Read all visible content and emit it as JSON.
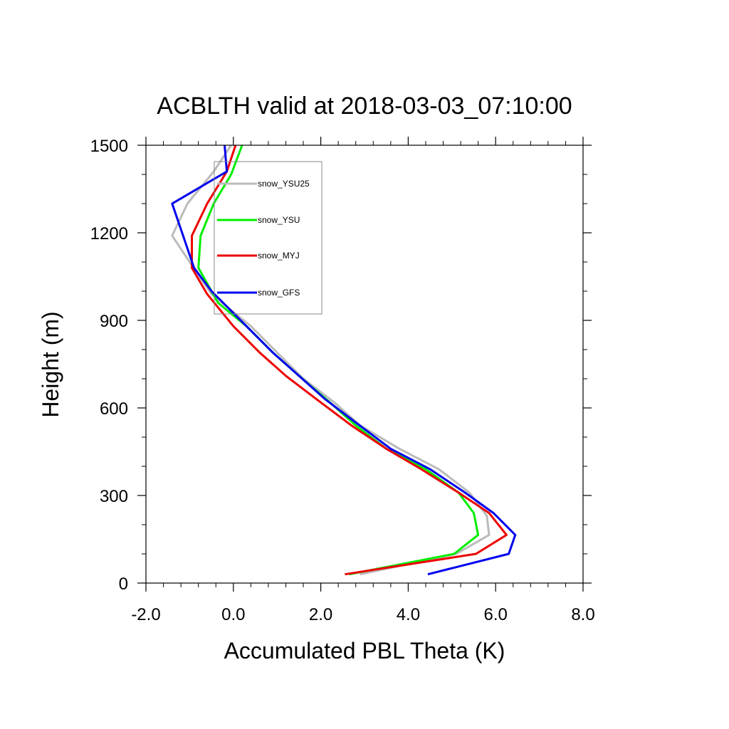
{
  "chart_data": {
    "type": "line",
    "title": "ACBLTH valid at 2018-03-03_07:10:00",
    "xlabel": "Accumulated PBL Theta (K)",
    "ylabel": "Height (m)",
    "xlim": [
      -2.0,
      8.0
    ],
    "ylim": [
      0,
      1500
    ],
    "xticks": [
      -2.0,
      0.0,
      2.0,
      4.0,
      6.0,
      8.0
    ],
    "xtick_labels": [
      "-2.0",
      "0.0",
      "2.0",
      "4.0",
      "6.0",
      "8.0"
    ],
    "yticks": [
      0,
      300,
      600,
      900,
      1200,
      1500
    ],
    "ytick_labels": [
      "0",
      "300",
      "600",
      "900",
      "1200",
      "1500"
    ],
    "legend_position": "top-left",
    "grid": false,
    "series": [
      {
        "name": "snow_YSU25",
        "color": "#bbbbbb",
        "points": [
          [
            2.9,
            30
          ],
          [
            5.1,
            100
          ],
          [
            5.85,
            165
          ],
          [
            5.8,
            230
          ],
          [
            5.4,
            310
          ],
          [
            4.7,
            390
          ],
          [
            3.8,
            460
          ],
          [
            2.9,
            540
          ],
          [
            2.3,
            620
          ],
          [
            1.6,
            700
          ],
          [
            1.0,
            790
          ],
          [
            0.4,
            880
          ],
          [
            -0.5,
            990
          ],
          [
            -1.0,
            1100
          ],
          [
            -1.4,
            1190
          ],
          [
            -1.05,
            1300
          ],
          [
            -0.45,
            1410
          ],
          [
            -0.05,
            1500
          ]
        ]
      },
      {
        "name": "snow_YSU",
        "color": "#00ee00",
        "points": [
          [
            2.65,
            30
          ],
          [
            5.05,
            100
          ],
          [
            5.6,
            165
          ],
          [
            5.5,
            240
          ],
          [
            5.15,
            310
          ],
          [
            4.4,
            390
          ],
          [
            3.5,
            460
          ],
          [
            2.8,
            540
          ],
          [
            2.2,
            620
          ],
          [
            1.5,
            710
          ],
          [
            0.9,
            790
          ],
          [
            0.3,
            880
          ],
          [
            -0.35,
            960
          ],
          [
            -0.8,
            1080
          ],
          [
            -0.75,
            1190
          ],
          [
            -0.45,
            1300
          ],
          [
            -0.05,
            1400
          ],
          [
            0.2,
            1500
          ]
        ]
      },
      {
        "name": "snow_MYJ",
        "color": "#ee0000",
        "points": [
          [
            2.55,
            30
          ],
          [
            5.55,
            100
          ],
          [
            6.25,
            165
          ],
          [
            5.85,
            240
          ],
          [
            5.15,
            310
          ],
          [
            4.3,
            390
          ],
          [
            3.5,
            460
          ],
          [
            2.7,
            540
          ],
          [
            1.9,
            630
          ],
          [
            1.2,
            710
          ],
          [
            0.6,
            790
          ],
          [
            0.0,
            880
          ],
          [
            -0.6,
            990
          ],
          [
            -0.95,
            1080
          ],
          [
            -0.95,
            1190
          ],
          [
            -0.6,
            1300
          ],
          [
            -0.15,
            1410
          ],
          [
            0.05,
            1500
          ]
        ]
      },
      {
        "name": "snow_GFS",
        "color": "#0000ee",
        "points": [
          [
            4.45,
            30
          ],
          [
            6.3,
            100
          ],
          [
            6.45,
            165
          ],
          [
            5.95,
            240
          ],
          [
            5.3,
            310
          ],
          [
            4.5,
            390
          ],
          [
            3.6,
            460
          ],
          [
            2.8,
            550
          ],
          [
            2.1,
            630
          ],
          [
            1.5,
            710
          ],
          [
            0.9,
            790
          ],
          [
            0.3,
            880
          ],
          [
            -0.5,
            1000
          ],
          [
            -0.9,
            1080
          ],
          [
            -1.15,
            1190
          ],
          [
            -1.4,
            1300
          ],
          [
            -0.15,
            1410
          ],
          [
            -0.2,
            1500
          ]
        ]
      }
    ]
  }
}
